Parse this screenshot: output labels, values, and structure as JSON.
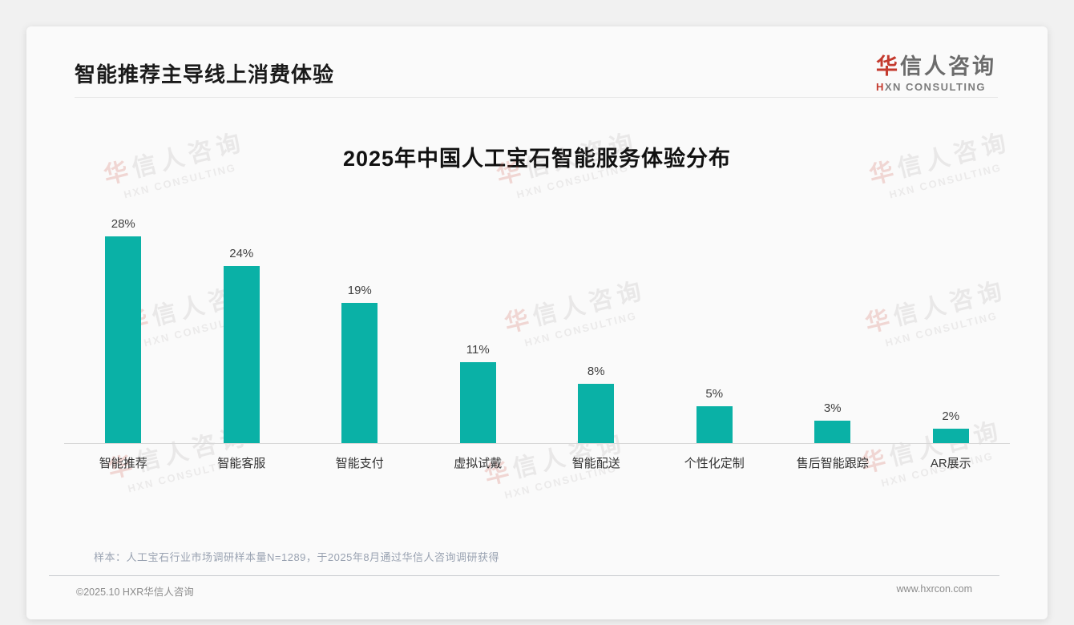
{
  "header": {
    "title": "智能推荐主导线上消费体验"
  },
  "logo": {
    "cn_accent": "华",
    "cn_rest": "信人咨询",
    "en_accent": "H",
    "en_rest": "XN CONSULTING"
  },
  "watermark": {
    "line1": "华信人咨询",
    "line2": "HXN CONSULTING"
  },
  "chart_data": {
    "type": "bar",
    "title": "2025年中国人工宝石智能服务体验分布",
    "categories": [
      "智能推荐",
      "智能客服",
      "智能支付",
      "虚拟试戴",
      "智能配送",
      "个性化定制",
      "售后智能跟踪",
      "AR展示"
    ],
    "values": [
      28,
      24,
      19,
      11,
      8,
      5,
      3,
      2
    ],
    "value_labels": [
      "28%",
      "24%",
      "19%",
      "11%",
      "8%",
      "5%",
      "3%",
      "2%"
    ],
    "bar_color": "#0ab1a6",
    "xlabel": "",
    "ylabel": "",
    "ylim": [
      0,
      30
    ],
    "grid": false,
    "legend": "none"
  },
  "notes": {
    "sample": "样本：人工宝石行业市场调研样本量N=1289，于2025年8月通过华信人咨询调研获得"
  },
  "footer": {
    "copyright": "©2025.10 HXR华信人咨询",
    "website": "www.hxrcon.com"
  },
  "colors": {
    "bar": "#0ab1a6",
    "accent_red": "#c43a2e",
    "title_text": "#1b1b1b",
    "note_text": "#9aa3b2"
  }
}
